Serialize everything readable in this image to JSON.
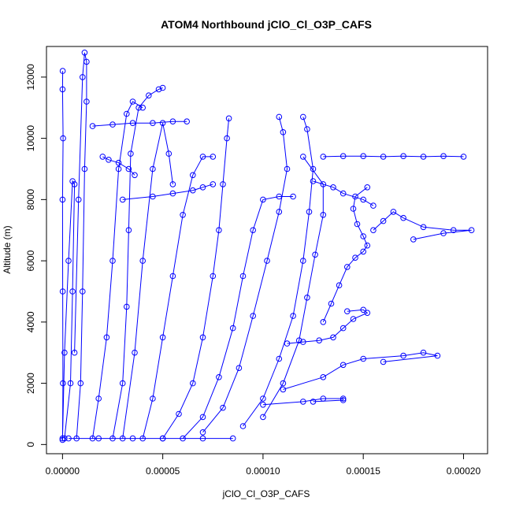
{
  "chart_data": {
    "type": "scatter",
    "title": "ATOM4 Northbound jClO_Cl_O3P_CAFS",
    "xlabel": "jClO_Cl_O3P_CAFS",
    "ylabel": "Altitude (m)",
    "xlim": [
      -8e-06,
      0.000212
    ],
    "ylim": [
      -300,
      13000
    ],
    "x_ticks": [
      {
        "value": 0.0,
        "label": "0.00000"
      },
      {
        "value": 5e-05,
        "label": "0.00005"
      },
      {
        "value": 0.0001,
        "label": "0.00010"
      },
      {
        "value": 0.00015,
        "label": "0.00015"
      },
      {
        "value": 0.0002,
        "label": "0.00020"
      }
    ],
    "y_ticks": [
      {
        "value": 0,
        "label": "0"
      },
      {
        "value": 2000,
        "label": "2000"
      },
      {
        "value": 4000,
        "label": "4000"
      },
      {
        "value": 6000,
        "label": "6000"
      },
      {
        "value": 8000,
        "label": "8000"
      },
      {
        "value": 10000,
        "label": "10000"
      },
      {
        "value": 12000,
        "label": "12000"
      }
    ],
    "marker": "open-circle",
    "color": "#0000ff",
    "grid": false,
    "legend": "none",
    "series": [
      {
        "x": [
          0.0,
          2e-07,
          1e-07,
          0.0,
          3e-07,
          0.0,
          1e-07
        ],
        "y": [
          150,
          2000,
          5000,
          8000,
          10000,
          11600,
          12200
        ]
      },
      {
        "x": [
          1e-06,
          4e-06,
          5e-06,
          6e-06,
          5e-06,
          3e-06,
          1e-06,
          0.0
        ],
        "y": [
          200,
          2000,
          5000,
          8500,
          8600,
          6000,
          3000,
          200
        ]
      },
      {
        "x": [
          7e-06,
          9e-06,
          1e-05,
          1.1e-05,
          1.2e-05,
          1.2e-05,
          1.1e-05,
          1e-05,
          8e-06,
          6e-06
        ],
        "y": [
          200,
          2000,
          5000,
          9000,
          11200,
          12500,
          12800,
          12000,
          8000,
          3000
        ]
      },
      {
        "x": [
          1.5e-05,
          1.8e-05,
          2.2e-05,
          2.5e-05,
          2.8e-05,
          3.2e-05,
          3.5e-05,
          4e-05
        ],
        "y": [
          200,
          1500,
          3500,
          6000,
          9000,
          10800,
          11200,
          11000
        ]
      },
      {
        "x": [
          2.5e-05,
          3e-05,
          3.2e-05,
          3.3e-05,
          3.4e-05,
          3.8e-05,
          4.3e-05,
          4.8e-05,
          5e-05
        ],
        "y": [
          200,
          2000,
          4500,
          7000,
          9500,
          11000,
          11400,
          11600,
          11650
        ]
      },
      {
        "x": [
          3e-05,
          3.6e-05,
          4e-05,
          4.5e-05,
          5e-05,
          5.3e-05,
          5.5e-05
        ],
        "y": [
          200,
          3000,
          6000,
          9000,
          10500,
          9500,
          8500
        ]
      },
      {
        "x": [
          4e-05,
          4.5e-05,
          5e-05,
          5.5e-05,
          6e-05,
          6.5e-05,
          7e-05,
          7.5e-05
        ],
        "y": [
          200,
          1500,
          3500,
          5500,
          7500,
          8800,
          9400,
          9400
        ]
      },
      {
        "x": [
          5e-05,
          5.8e-05,
          6.5e-05,
          7e-05,
          7.5e-05,
          7.8e-05,
          8e-05,
          8.2e-05,
          8.3e-05
        ],
        "y": [
          200,
          1000,
          2000,
          3500,
          5500,
          7000,
          8500,
          10000,
          10650
        ]
      },
      {
        "x": [
          6e-05,
          7e-05,
          7.8e-05,
          8.5e-05,
          9e-05,
          9.5e-05,
          0.0001,
          0.000108,
          0.000115
        ],
        "y": [
          200,
          900,
          2200,
          3800,
          5500,
          7000,
          8000,
          8100,
          8100
        ]
      },
      {
        "x": [
          7e-05,
          8e-05,
          8.8e-05,
          9.5e-05,
          0.000102,
          0.000108,
          0.000112,
          0.00011,
          0.000108
        ],
        "y": [
          400,
          1200,
          2500,
          4200,
          6000,
          7600,
          9000,
          10200,
          10700
        ]
      },
      {
        "x": [
          9e-05,
          0.0001,
          0.000108,
          0.000115,
          0.00012,
          0.000123,
          0.000125,
          0.000122,
          0.00012
        ],
        "y": [
          600,
          1500,
          2800,
          4200,
          6000,
          7600,
          9000,
          10300,
          10700
        ]
      },
      {
        "x": [
          0.0001,
          0.00011,
          0.000118,
          0.000122,
          0.000126,
          0.00013,
          0.00013,
          0.00012
        ],
        "y": [
          900,
          2000,
          3400,
          4800,
          6200,
          7500,
          8500,
          9400
        ]
      },
      {
        "x": [
          0.00011,
          0.00013,
          0.00014,
          0.00015,
          0.00017,
          0.00018,
          0.000187,
          0.00016
        ],
        "y": [
          1800,
          2200,
          2600,
          2800,
          2900,
          3000,
          2900,
          2700
        ]
      },
      {
        "x": [
          0.0001,
          0.00012,
          0.00013,
          0.00014,
          0.00014,
          0.000125
        ],
        "y": [
          1300,
          1400,
          1500,
          1500,
          1450,
          1400
        ]
      },
      {
        "x": [
          0.000112,
          0.00012,
          0.000128,
          0.000135,
          0.00014,
          0.000145,
          0.000152,
          0.00015,
          0.000142
        ],
        "y": [
          3300,
          3350,
          3400,
          3500,
          3800,
          4100,
          4300,
          4400,
          4350
        ]
      },
      {
        "x": [
          0.00013,
          0.000134,
          0.000138,
          0.000142,
          0.000146,
          0.00015,
          0.000152,
          0.00015,
          0.000147,
          0.000145,
          0.000146,
          0.000152
        ],
        "y": [
          4000,
          4600,
          5200,
          5800,
          6100,
          6300,
          6500,
          6800,
          7200,
          7700,
          8100,
          8400
        ]
      },
      {
        "x": [
          0.000155,
          0.00016,
          0.000165,
          0.00017,
          0.00018,
          0.000195,
          0.000204,
          0.00019,
          0.000175
        ],
        "y": [
          7000,
          7300,
          7600,
          7400,
          7100,
          7000,
          7000,
          6900,
          6700
        ]
      },
      {
        "x": [
          0.00013,
          0.00014,
          0.00015,
          0.00016,
          0.00017,
          0.00018,
          0.00019,
          0.0002
        ],
        "y": [
          9400,
          9420,
          9420,
          9400,
          9420,
          9400,
          9420,
          9400
        ]
      },
      {
        "x": [
          0.000125,
          0.000135,
          0.00014,
          0.00015,
          0.000155
        ],
        "y": [
          8600,
          8400,
          8200,
          8000,
          7800
        ]
      },
      {
        "x": [
          3e-06,
          1.8e-05,
          3.5e-05,
          5e-05,
          7e-05,
          8.5e-05
        ],
        "y": [
          200,
          200,
          200,
          200,
          200,
          200
        ]
      },
      {
        "x": [
          1.5e-05,
          2.5e-05,
          3.5e-05,
          4.5e-05,
          5.5e-05,
          6.2e-05
        ],
        "y": [
          10400,
          10450,
          10500,
          10500,
          10550,
          10550
        ]
      },
      {
        "x": [
          3e-05,
          4.5e-05,
          5.5e-05,
          6.5e-05,
          7e-05,
          7.5e-05
        ],
        "y": [
          8000,
          8100,
          8200,
          8300,
          8400,
          8500
        ]
      },
      {
        "x": [
          2e-05,
          2.3e-05,
          2.8e-05,
          3.3e-05,
          3.6e-05
        ],
        "y": [
          9400,
          9300,
          9200,
          9000,
          8800
        ]
      }
    ]
  }
}
